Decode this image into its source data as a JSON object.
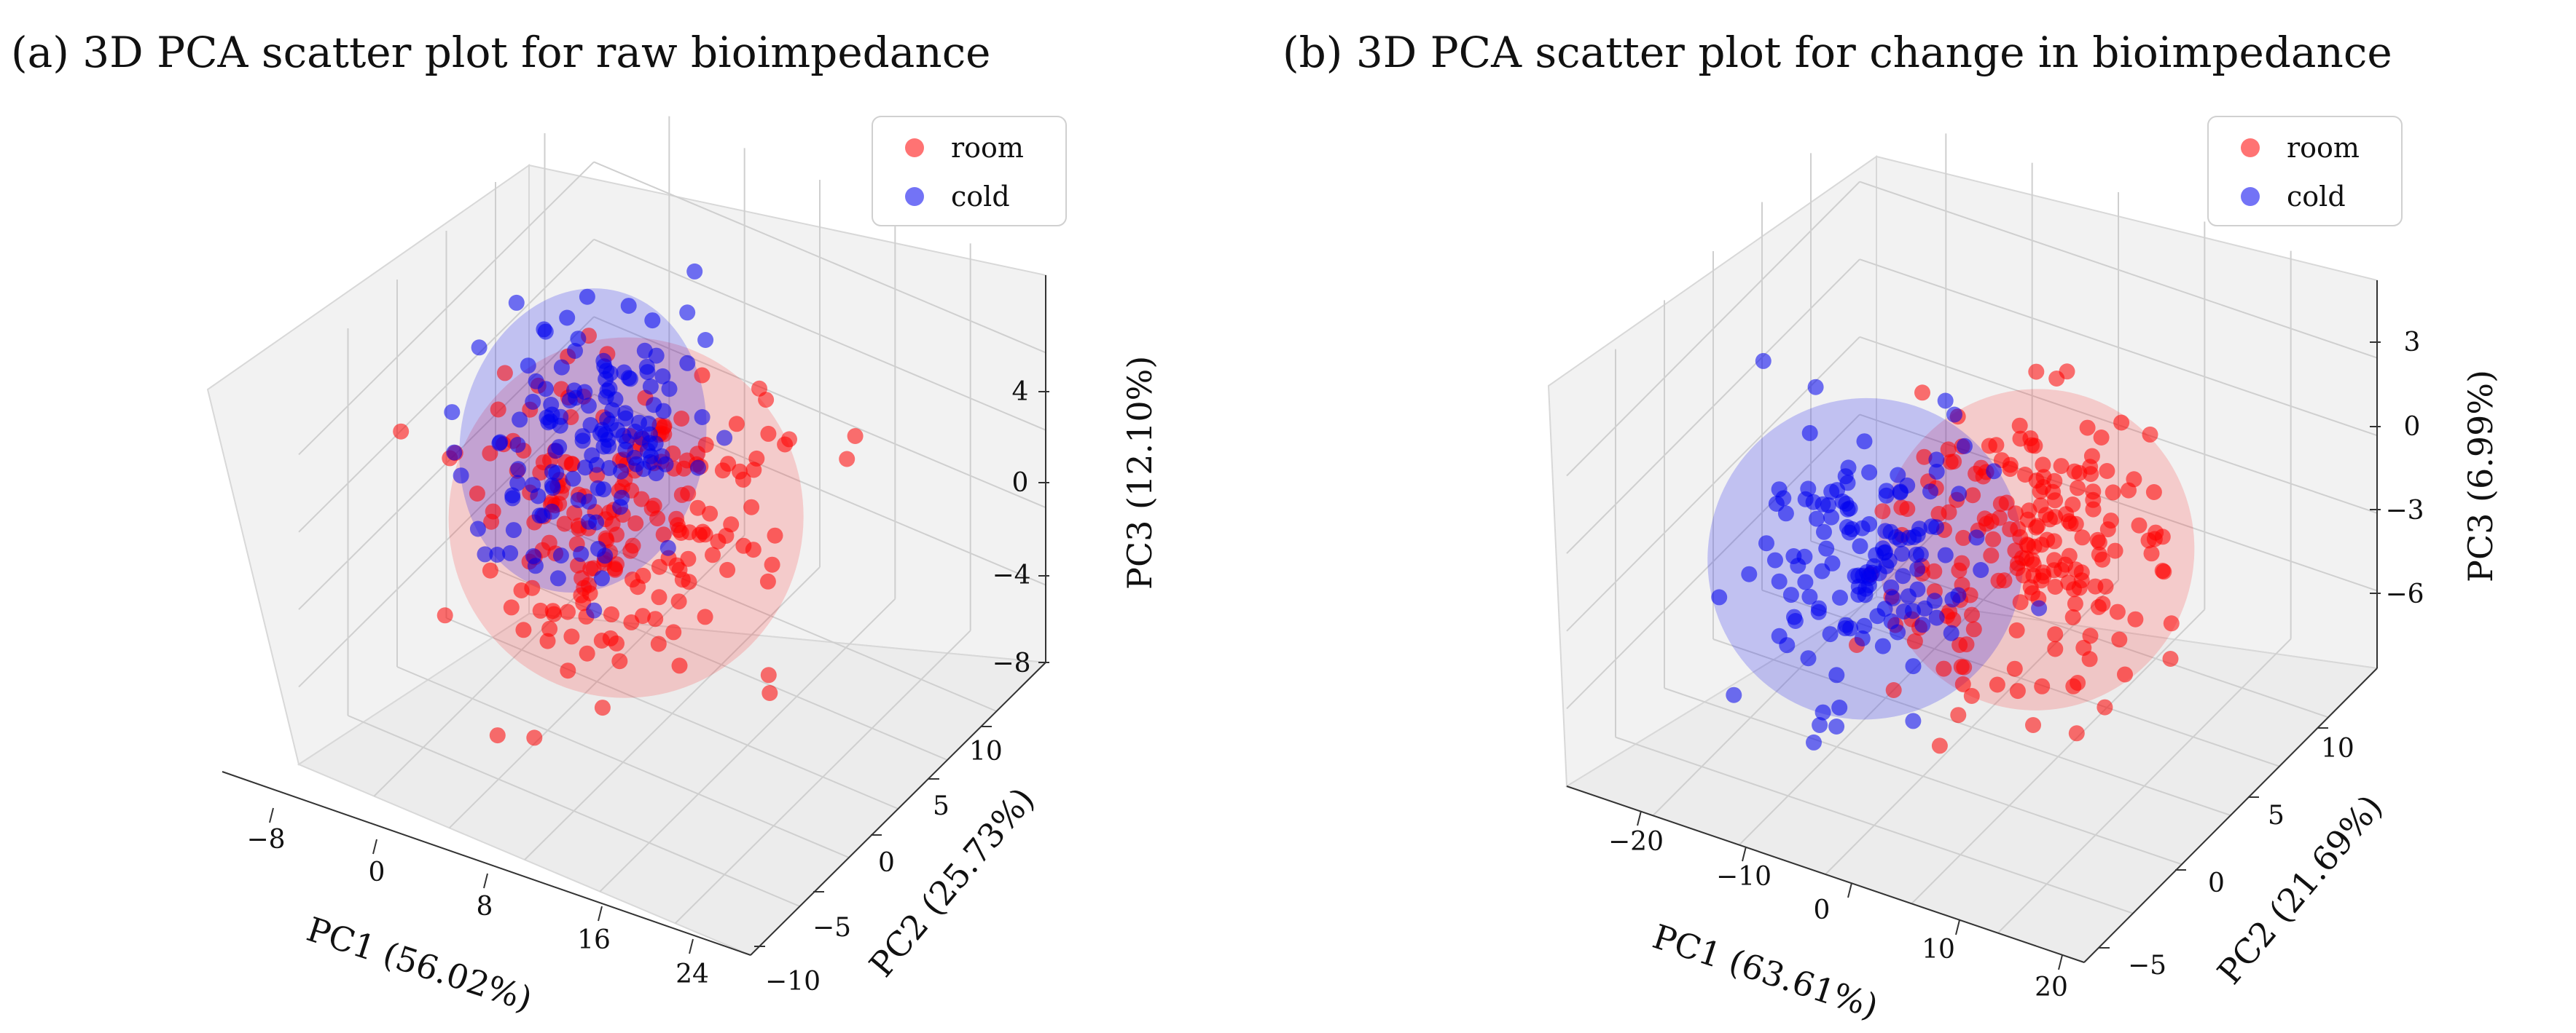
{
  "colors": {
    "room": "#ff0000",
    "cold": "#0000ee"
  },
  "legend": {
    "room_label": "room",
    "cold_label": "cold"
  },
  "chart_data": [
    {
      "type": "scatter",
      "title": "(a) 3D PCA scatter plot for raw bioimpedance",
      "xlabel": "PC1 (56.02%)",
      "ylabel": "PC2 (25.73%)",
      "zlabel": "PC3 (12.10%)",
      "xticks": [
        "−8",
        "0",
        "8",
        "16",
        "24"
      ],
      "yticks": [
        "−10",
        "−5",
        "0",
        "5",
        "10"
      ],
      "zticks": [
        "−8",
        "−4",
        "0",
        "4"
      ],
      "xlim": [
        -12,
        28
      ],
      "ylim": [
        -11,
        13
      ],
      "zlim": [
        -9,
        7
      ],
      "series": [
        {
          "name": "room",
          "count": 200,
          "centroid": [
            5,
            0,
            -1
          ],
          "spread": [
            5.5,
            3.5,
            2.6
          ],
          "ellipsoid_radii": [
            11,
            7,
            5.2
          ],
          "seed": 11
        },
        {
          "name": "cold",
          "count": 140,
          "centroid": [
            -1,
            2,
            0
          ],
          "spread": [
            3.5,
            3.0,
            2.2
          ],
          "ellipsoid_radii": [
            7,
            6,
            4.4
          ],
          "seed": 23
        }
      ]
    },
    {
      "type": "scatter",
      "title": "(b) 3D PCA scatter plot for change in bioimpedance",
      "xlabel": "PC1 (63.61%)",
      "ylabel": "PC2 (21.69%)",
      "zlabel": "PC3 (6.99%)",
      "xticks": [
        "−20",
        "−10",
        "0",
        "10",
        "20"
      ],
      "yticks": [
        "−5",
        "0",
        "5",
        "10"
      ],
      "zticks": [
        "−6",
        "−3",
        "0",
        "3"
      ],
      "xlim": [
        -25,
        22
      ],
      "ylim": [
        -9,
        12
      ],
      "zlim": [
        -8,
        5
      ],
      "series": [
        {
          "name": "room",
          "count": 200,
          "centroid": [
            5,
            1,
            -1
          ],
          "spread": [
            5.0,
            3.0,
            1.8
          ],
          "ellipsoid_radii": [
            10,
            6,
            3.6
          ],
          "seed": 37
        },
        {
          "name": "cold",
          "count": 140,
          "centroid": [
            -8,
            -1,
            -2
          ],
          "spread": [
            5.0,
            3.0,
            1.8
          ],
          "ellipsoid_radii": [
            10,
            6,
            3.6
          ],
          "seed": 53
        }
      ]
    }
  ]
}
